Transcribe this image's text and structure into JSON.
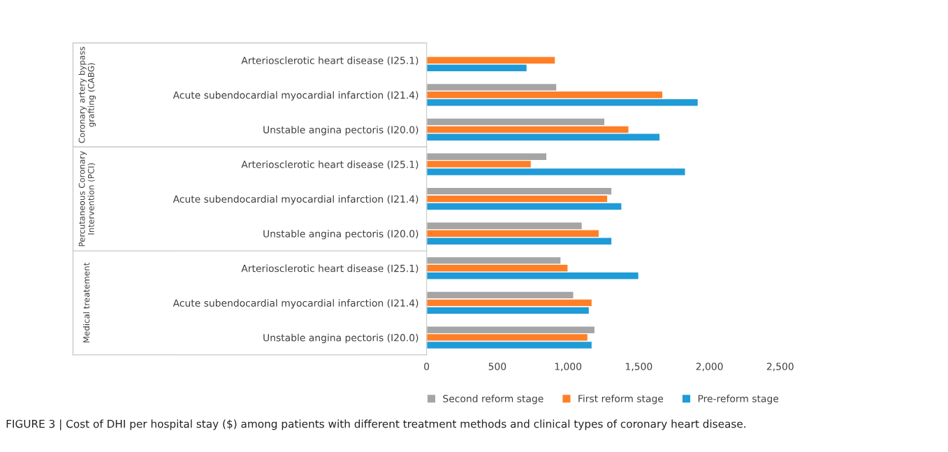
{
  "chart_data": {
    "type": "bar",
    "orientation": "horizontal",
    "categories": [
      "Arteriosclerotic heart disease (I25.1)",
      "Acute subendocardial myocardial infarction (I21.4)",
      "Unstable angina pectoris (I20.0)",
      "Arteriosclerotic heart disease (I25.1)",
      "Acute subendocardial myocardial infarction (I21.4)",
      "Unstable angina pectoris (I20.0)",
      "Arteriosclerotic heart disease (I25.1)",
      "Acute subendocardial myocardial infarction (I21.4)",
      "Unstable angina pectoris (I20.0)"
    ],
    "series": [
      {
        "name": "Second reform stage",
        "color": "#a5a5a5",
        "values": [
          null,
          920,
          1260,
          850,
          1310,
          1100,
          950,
          1040,
          1190
        ]
      },
      {
        "name": "First reform stage",
        "color": "#ff7f27",
        "values": [
          910,
          1670,
          1430,
          740,
          1280,
          1220,
          1000,
          1170,
          1140
        ]
      },
      {
        "name": "Pre-reform stage",
        "color": "#1f9bd7",
        "values": [
          710,
          1920,
          1650,
          1830,
          1380,
          1310,
          1500,
          1150,
          1170
        ]
      }
    ],
    "xlim": [
      0,
      2500
    ],
    "xticks": [
      {
        "value": 0,
        "label": "0"
      },
      {
        "value": 500,
        "label": "500"
      },
      {
        "value": 1000,
        "label": "1,000"
      },
      {
        "value": 1500,
        "label": "1,500"
      },
      {
        "value": 2000,
        "label": "2,000"
      },
      {
        "value": 2500,
        "label": "2,500"
      }
    ],
    "grid": false,
    "legend": "bottom",
    "annotations": [
      "Coronary artery bypass grafting (CABG)",
      "Percutaneous Coronary Intervention (PCI)",
      "Medical treatement",
      "FIGURE 3 | Cost of DHI per hospital stay ($) among patients with different treatment methods and clinical types of coronary heart disease."
    ]
  }
}
